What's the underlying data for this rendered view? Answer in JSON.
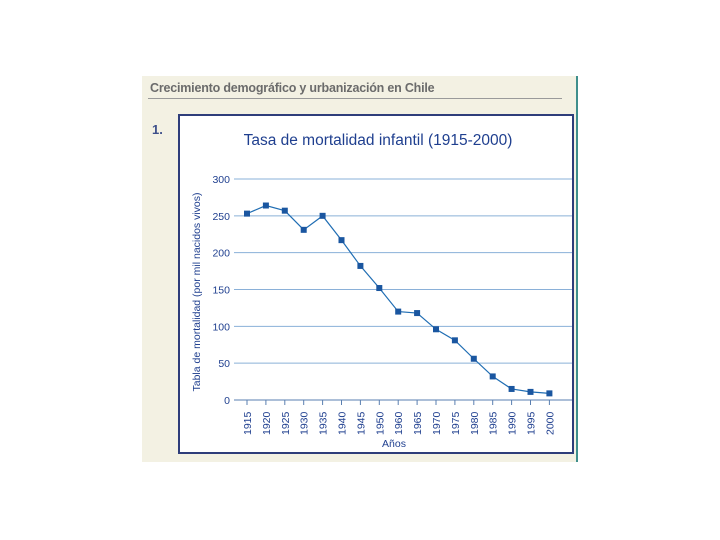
{
  "page": {
    "header": "Crecimiento demográfico y urbanización en Chile",
    "figure_number": "1."
  },
  "colors": {
    "accent": "#1f3f8f",
    "line": "#1f6db3",
    "marker": "#1a56a0",
    "grid": "#8ab0d8",
    "frame": "#2e3d7a",
    "panel": "#f3f1e3"
  },
  "chart_data": {
    "type": "line",
    "title": "Tasa de mortalidad infantil (1915-2000)",
    "xlabel": "Años",
    "ylabel": "Tabla de mortalidad (por mil nacidos vivos)",
    "categories": [
      "1915",
      "1920",
      "1925",
      "1930",
      "1935",
      "1940",
      "1945",
      "1950",
      "1960",
      "1965",
      "1970",
      "1975",
      "1980",
      "1985",
      "1990",
      "1995",
      "2000"
    ],
    "series": [
      {
        "name": "Tasa de mortalidad infantil",
        "values": [
          253,
          264,
          257,
          231,
          250,
          217,
          182,
          152,
          120,
          118,
          96,
          81,
          56,
          32,
          15,
          11,
          9
        ]
      }
    ],
    "yticks": [
      0,
      50,
      100,
      150,
      200,
      250,
      300
    ],
    "ylim": [
      0,
      300
    ],
    "grid": true,
    "legend": "none"
  }
}
